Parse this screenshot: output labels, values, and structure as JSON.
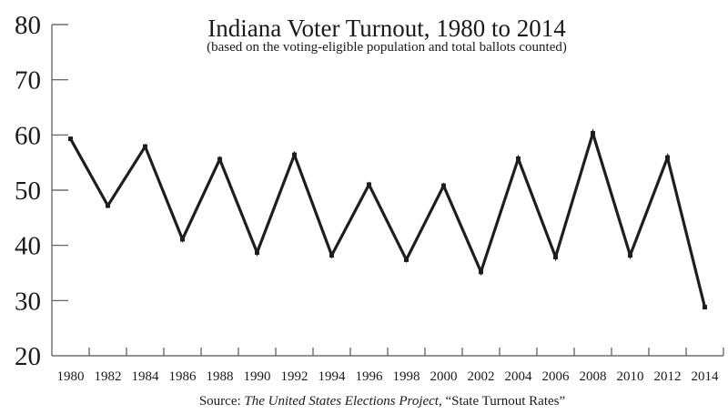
{
  "chart_data": {
    "type": "line",
    "title": "Indiana Voter Turnout, 1980 to 2014",
    "subtitle": "(based on the voting-eligible population and total ballots counted)",
    "xlabel": "",
    "ylabel": "",
    "source": {
      "prefix": "Source: ",
      "publication": "The United States Elections Project",
      "separator": ", ",
      "article": "“State Turnout Rates”"
    },
    "categories": [
      "1980",
      "1982",
      "1984",
      "1986",
      "1988",
      "1990",
      "1992",
      "1994",
      "1996",
      "1998",
      "2000",
      "2002",
      "2004",
      "2006",
      "2008",
      "2010",
      "2012",
      "2014"
    ],
    "series": [
      {
        "name": "Indiana Voter Turnout",
        "values": [
          59.3,
          47.2,
          57.9,
          41.1,
          55.6,
          38.7,
          56.4,
          38.2,
          51.0,
          37.4,
          50.8,
          35.2,
          55.7,
          37.9,
          60.3,
          38.2,
          55.9,
          28.8
        ]
      }
    ],
    "ylim": [
      20,
      80
    ],
    "yticks": [
      "20",
      "30",
      "40",
      "50",
      "60",
      "70",
      "80"
    ],
    "grid": false,
    "legend": "none",
    "colors": {
      "line": "#1e1e1e",
      "axis": "#555555",
      "text": "#1a1a1a"
    }
  }
}
